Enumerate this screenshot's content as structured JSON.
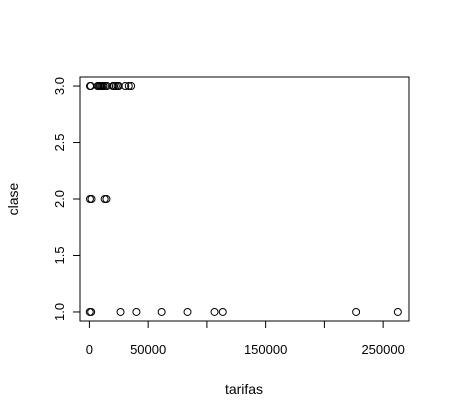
{
  "chart_data": {
    "type": "scatter",
    "title": "",
    "xlabel": "tarifas",
    "ylabel": "clase",
    "xlim": [
      -8000,
      272000
    ],
    "ylim": [
      0.92,
      3.08
    ],
    "x_ticks": [
      0,
      50000,
      100000,
      150000,
      200000,
      250000
    ],
    "x_tick_labels": [
      "0",
      "50000",
      "",
      "150000",
      "",
      "250000"
    ],
    "y_ticks": [
      1.0,
      1.5,
      2.0,
      2.5,
      3.0
    ],
    "y_tick_labels": [
      "1.0",
      "1.5",
      "2.0",
      "2.5",
      "3.0"
    ],
    "marker": "open-circle",
    "color": "#000000",
    "grid": false,
    "legend": "none",
    "series": [
      {
        "points": [
          {
            "x": 500,
            "y": 3
          },
          {
            "x": 1200,
            "y": 3
          },
          {
            "x": 7000,
            "y": 3
          },
          {
            "x": 8000,
            "y": 3
          },
          {
            "x": 9000,
            "y": 3
          },
          {
            "x": 10000,
            "y": 3
          },
          {
            "x": 11000,
            "y": 3
          },
          {
            "x": 12000,
            "y": 3
          },
          {
            "x": 13500,
            "y": 3
          },
          {
            "x": 15000,
            "y": 3
          },
          {
            "x": 20000,
            "y": 3
          },
          {
            "x": 21000,
            "y": 3
          },
          {
            "x": 22500,
            "y": 3
          },
          {
            "x": 24000,
            "y": 3
          },
          {
            "x": 25000,
            "y": 3
          },
          {
            "x": 30500,
            "y": 3
          },
          {
            "x": 33500,
            "y": 3
          },
          {
            "x": 35500,
            "y": 3
          },
          {
            "x": 500,
            "y": 2
          },
          {
            "x": 1800,
            "y": 2
          },
          {
            "x": 13000,
            "y": 2
          },
          {
            "x": 14500,
            "y": 2
          },
          {
            "x": 300,
            "y": 1
          },
          {
            "x": 1500,
            "y": 1
          },
          {
            "x": 26500,
            "y": 1
          },
          {
            "x": 40000,
            "y": 1
          },
          {
            "x": 61500,
            "y": 1
          },
          {
            "x": 83500,
            "y": 1
          },
          {
            "x": 106500,
            "y": 1
          },
          {
            "x": 113500,
            "y": 1
          },
          {
            "x": 227000,
            "y": 1
          },
          {
            "x": 262500,
            "y": 1
          }
        ]
      }
    ]
  }
}
